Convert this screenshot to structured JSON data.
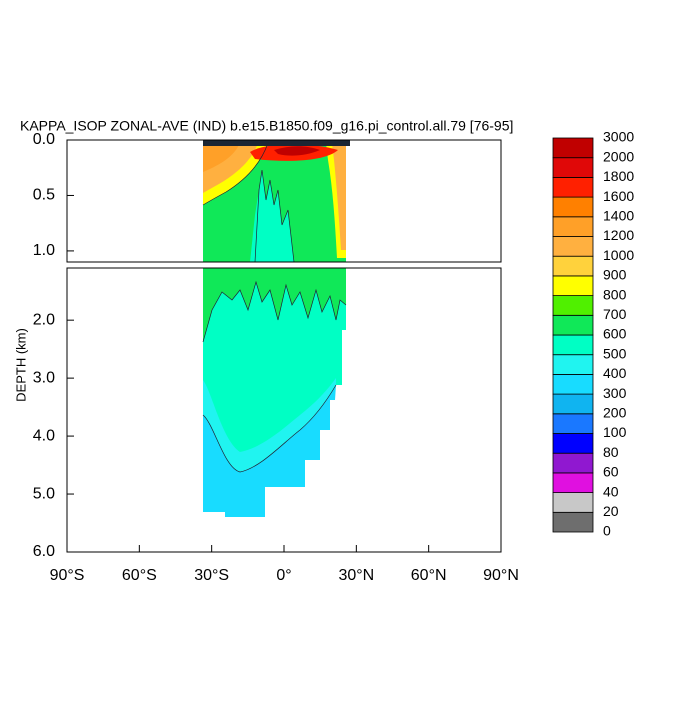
{
  "chart_data": {
    "type": "contour",
    "title": "KAPPA_ISOP ZONAL-AVE (IND) b.e15.B1850.f09_g16.pi_control.all.79 [76-95]",
    "ylabel": "DEPTH (km)",
    "xlim": [
      -90,
      90
    ],
    "xticks": [
      {
        "value": -90,
        "label": "90°S"
      },
      {
        "value": -60,
        "label": "60°S"
      },
      {
        "value": -30,
        "label": "30°S"
      },
      {
        "value": 0,
        "label": "0°"
      },
      {
        "value": 30,
        "label": "30°N"
      },
      {
        "value": 60,
        "label": "60°N"
      },
      {
        "value": 90,
        "label": "90°N"
      }
    ],
    "panels": [
      {
        "ylim": [
          0,
          1.1
        ],
        "yticks": [
          {
            "value": 0,
            "label": "0.0"
          },
          0.5,
          {
            "value": 1,
            "label": "1.0"
          }
        ]
      },
      {
        "ylim": [
          1.1,
          6
        ],
        "yticks": [
          {
            "value": 2,
            "label": "2.0"
          },
          {
            "value": 3,
            "label": "3.0"
          },
          {
            "value": 4,
            "label": "4.0"
          },
          {
            "value": 5,
            "label": "5.0"
          },
          {
            "value": 6,
            "label": "6.0"
          }
        ]
      }
    ],
    "colorbar": {
      "levels": [
        0,
        20,
        40,
        60,
        80,
        100,
        200,
        300,
        400,
        500,
        600,
        700,
        800,
        900,
        1000,
        1200,
        1400,
        1600,
        1800,
        2000,
        3000
      ],
      "colors": [
        "#6e6e6e",
        "#c8c8c8",
        "#e010e0",
        "#9018d0",
        "#0000ff",
        "#1a78ff",
        "#10b4f0",
        "#18dcff",
        "#20f4f0",
        "#00ffc4",
        "#10e858",
        "#50f000",
        "#ffff00",
        "#ffd23c",
        "#ffb040",
        "#ffa028",
        "#ff8000",
        "#ff2000",
        "#e00808",
        "#c00000"
      ]
    }
  }
}
